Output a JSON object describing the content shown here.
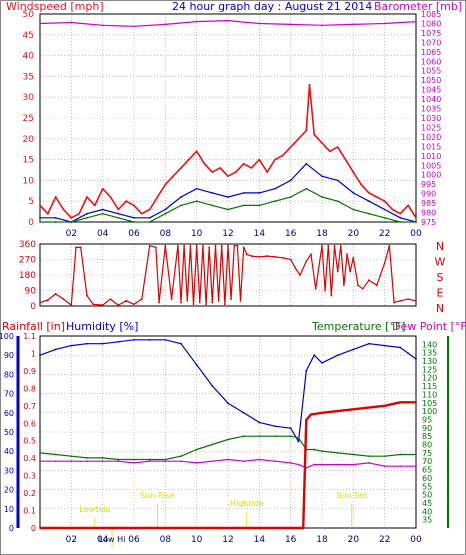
{
  "colors": {
    "wind": "#ee1111",
    "gust": "#ee1111",
    "avgwind": "#0000cc",
    "windlow": "#007700",
    "baro": "#cc00cc",
    "dir": "#dd0000",
    "rain": "#dd0000",
    "humidity": "#0000cc",
    "temp": "#007700",
    "dew": "#cc00cc",
    "annot": "#dddd00",
    "grid": "#999999"
  },
  "chart_data": [
    {
      "type": "line",
      "panel": "wind",
      "title": "24 hour graph day : August 21 2014",
      "ylabel": "Windspeed [mph]",
      "y2label": "Barometer [mb]",
      "ylim": [
        0,
        50
      ],
      "y2lim": [
        975,
        1085
      ],
      "yticks": [
        "0",
        "5",
        "10",
        "15",
        "20",
        "25",
        "30",
        "35",
        "40",
        "45",
        "50"
      ],
      "y2ticks": [
        "975",
        "980",
        "985",
        "990",
        "995",
        "1000",
        "1005",
        "1010",
        "1015",
        "1020",
        "1025",
        "1030",
        "1035",
        "1040",
        "1045",
        "1050",
        "1055",
        "1060",
        "1065",
        "1070",
        "1075",
        "1080",
        "1085"
      ],
      "xticks": [
        "02",
        "04",
        "06",
        "08",
        "10",
        "12",
        "14",
        "16",
        "18",
        "20",
        "22",
        "00"
      ],
      "grid": true,
      "series": [
        {
          "key": "gust",
          "x": [
            0,
            0.5,
            1,
            1.5,
            2,
            2.5,
            3,
            3.5,
            4,
            4.5,
            5,
            5.5,
            6,
            6.5,
            7,
            7.5,
            8,
            8.5,
            9,
            9.5,
            10,
            10.5,
            11,
            11.5,
            12,
            12.5,
            13,
            13.5,
            14,
            14.5,
            15,
            15.5,
            16,
            16.5,
            17,
            17.2,
            17.5,
            18,
            18.5,
            19,
            19.5,
            20,
            20.5,
            21,
            21.5,
            22,
            22.5,
            23,
            23.5,
            24
          ],
          "values": [
            4,
            2,
            6,
            3,
            1,
            2,
            6,
            4,
            8,
            6,
            3,
            5,
            4,
            2,
            3,
            6,
            9,
            11,
            13,
            15,
            17,
            14,
            12,
            13,
            11,
            12,
            14,
            13,
            15,
            12,
            15,
            16,
            18,
            20,
            22,
            33,
            21,
            19,
            17,
            18,
            15,
            12,
            9,
            7,
            6,
            5,
            3,
            2,
            4,
            1
          ]
        },
        {
          "key": "avgwind",
          "x": [
            0,
            1,
            2,
            3,
            4,
            5,
            6,
            7,
            8,
            9,
            10,
            11,
            12,
            13,
            14,
            15,
            16,
            17,
            18,
            19,
            20,
            21,
            22,
            23,
            24
          ],
          "values": [
            1,
            1,
            0,
            2,
            3,
            2,
            1,
            1,
            3,
            6,
            8,
            7,
            6,
            7,
            7,
            8,
            10,
            14,
            11,
            10,
            7,
            5,
            3,
            1,
            0
          ]
        },
        {
          "key": "windlow",
          "x": [
            0,
            1,
            2,
            3,
            4,
            5,
            6,
            7,
            8,
            9,
            10,
            11,
            12,
            13,
            14,
            15,
            16,
            17,
            18,
            19,
            20,
            21,
            22,
            23,
            24
          ],
          "values": [
            0,
            0,
            0,
            1,
            2,
            1,
            0,
            0,
            2,
            4,
            5,
            4,
            3,
            4,
            4,
            5,
            6,
            8,
            6,
            5,
            3,
            2,
            1,
            0,
            0
          ]
        },
        {
          "key": "baro",
          "axis": "right",
          "x": [
            0,
            2,
            4,
            6,
            8,
            10,
            12,
            14,
            16,
            18,
            20,
            22,
            24
          ],
          "values": [
            1080,
            1080.5,
            1079,
            1078.5,
            1079.5,
            1081,
            1081.5,
            1080,
            1079.5,
            1079,
            1079.5,
            1080,
            1081
          ]
        }
      ]
    },
    {
      "type": "line",
      "panel": "direction",
      "ylim": [
        0,
        360
      ],
      "yticks": [
        "0",
        "90",
        "180",
        "270",
        "360"
      ],
      "y2ticks": [
        "N",
        "W",
        "S",
        "E",
        "N"
      ],
      "xticks": [
        "02",
        "04",
        "06",
        "08",
        "10",
        "12",
        "14",
        "16",
        "18",
        "20",
        "22",
        "00"
      ],
      "grid": true,
      "series": [
        {
          "key": "dir",
          "x": [
            0,
            0.5,
            1,
            1.5,
            2,
            2.3,
            2.6,
            3,
            3.4,
            4,
            4.5,
            5,
            5.5,
            6,
            6.5,
            7,
            7.4,
            7.6,
            8,
            8.4,
            8.8,
            9,
            9.2,
            9.4,
            9.6,
            9.8,
            10,
            10.2,
            10.4,
            10.6,
            10.8,
            11,
            11.2,
            11.4,
            11.6,
            11.8,
            12,
            12.2,
            12.4,
            12.6,
            12.8,
            13,
            13.2,
            13.5,
            14,
            14.5,
            15,
            15.5,
            16,
            16.3,
            16.6,
            17,
            17.3,
            17.6,
            18,
            18.2,
            18.4,
            18.6,
            18.8,
            19,
            19.2,
            19.4,
            19.6,
            19.8,
            20,
            20.3,
            20.6,
            21,
            21.5,
            22,
            22.3,
            22.6,
            23,
            23.5,
            24
          ],
          "values": [
            20,
            35,
            70,
            40,
            5,
            340,
            340,
            60,
            10,
            5,
            40,
            5,
            30,
            10,
            40,
            350,
            340,
            20,
            350,
            40,
            350,
            20,
            350,
            30,
            350,
            10,
            350,
            20,
            350,
            10,
            340,
            20,
            350,
            30,
            350,
            10,
            350,
            40,
            350,
            350,
            30,
            340,
            300,
            290,
            285,
            290,
            285,
            280,
            270,
            220,
            180,
            260,
            300,
            100,
            350,
            90,
            350,
            60,
            350,
            200,
            350,
            120,
            300,
            200,
            280,
            120,
            100,
            150,
            120,
            250,
            350,
            20,
            30,
            40,
            30
          ]
        }
      ]
    },
    {
      "type": "line",
      "panel": "weather",
      "ylabel": "Rainfall [in]",
      "ylabel2": "Humidity [%]",
      "y3label": "Temperature [°F]",
      "y4label": "Dew Point [°F]",
      "rainlim": [
        0,
        1.1
      ],
      "humlim": [
        0,
        100
      ],
      "templim": [
        30,
        145
      ],
      "rainticks": [
        "0",
        "0.1",
        "0.2",
        "0.3",
        "0.4",
        "0.5",
        "0.6",
        "0.7",
        "0.8",
        "0.9",
        "1",
        "1.1"
      ],
      "humticks": [
        "0",
        "10",
        "20",
        "30",
        "40",
        "50",
        "60",
        "70",
        "80",
        "90",
        "100"
      ],
      "tempticks": [
        "35",
        "40",
        "45",
        "50",
        "55",
        "60",
        "65",
        "70",
        "75",
        "80",
        "85",
        "90",
        "95",
        "100",
        "105",
        "110",
        "115",
        "120",
        "125",
        "130",
        "135",
        "140"
      ],
      "xticks": [
        "02",
        "04",
        "06",
        "08",
        "10",
        "12",
        "14",
        "16",
        "18",
        "20",
        "22",
        "00"
      ],
      "grid": true,
      "annotations": [
        {
          "label": "Low Hi",
          "hour": 4.6
        },
        {
          "label": "Lowtide",
          "hour": 3.5
        },
        {
          "label": "Sun Rise",
          "hour": 7.5
        },
        {
          "label": "Hightide",
          "hour": 13.2
        },
        {
          "label": "Sun Set",
          "hour": 19.9
        }
      ],
      "series": [
        {
          "key": "humidity",
          "axis": "hum",
          "x": [
            0,
            1,
            2,
            3,
            4,
            5,
            6,
            7,
            8,
            9,
            10,
            11,
            12,
            13,
            14,
            15,
            16,
            16.5,
            17,
            17.5,
            18,
            19,
            20,
            21,
            22,
            23,
            23.5,
            24
          ],
          "values": [
            90,
            93,
            95,
            96,
            96,
            97,
            98,
            98,
            98,
            96,
            85,
            74,
            65,
            60,
            55,
            53,
            52,
            45,
            82,
            90,
            86,
            90,
            93,
            96,
            95,
            94,
            91,
            88
          ]
        },
        {
          "key": "temp",
          "axis": "temp",
          "x": [
            0,
            1,
            2,
            3,
            4,
            5,
            6,
            7,
            8,
            9,
            10,
            11,
            12,
            13,
            14,
            15,
            16,
            16.5,
            17,
            17.5,
            18,
            19,
            20,
            21,
            22,
            23,
            24
          ],
          "values": [
            75,
            74,
            73,
            72,
            72,
            71,
            71,
            71,
            71,
            73,
            77,
            80,
            83,
            85,
            85,
            85,
            85,
            84,
            77,
            77,
            76,
            75,
            74,
            73,
            73,
            74,
            74
          ]
        },
        {
          "key": "dew",
          "axis": "temp",
          "x": [
            0,
            1,
            2,
            3,
            4,
            5,
            6,
            7,
            8,
            9,
            10,
            11,
            12,
            13,
            14,
            15,
            16,
            16.5,
            17,
            17.5,
            18,
            19,
            20,
            21,
            22,
            23,
            24
          ],
          "values": [
            70,
            70,
            70,
            70,
            70,
            70,
            69,
            70,
            70,
            70,
            69,
            70,
            71,
            70,
            71,
            70,
            69,
            68,
            66,
            68,
            68,
            68,
            68,
            69,
            67,
            67,
            67
          ]
        },
        {
          "key": "rain",
          "axis": "rain",
          "x": [
            0,
            16.6,
            16.8,
            17,
            17.3,
            18,
            20,
            22,
            23,
            24
          ],
          "values": [
            0,
            0,
            0,
            0.62,
            0.65,
            0.66,
            0.68,
            0.7,
            0.72,
            0.72
          ]
        }
      ]
    }
  ]
}
